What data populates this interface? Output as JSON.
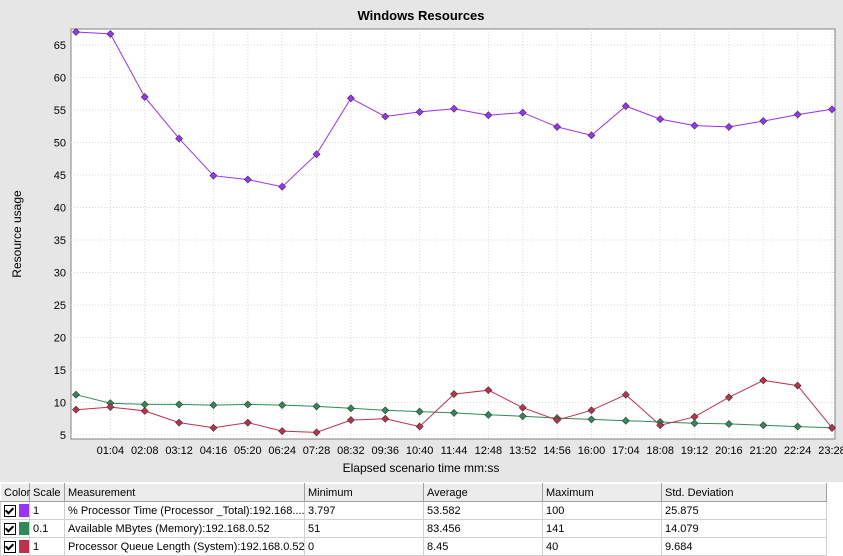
{
  "chart_data": {
    "type": "line",
    "title": "Windows Resources",
    "xlabel": "Elapsed scenario time mm:ss",
    "ylabel": "Resource usage",
    "ylim": [
      5,
      67
    ],
    "yticks": [
      5,
      10,
      15,
      20,
      25,
      30,
      35,
      40,
      45,
      50,
      55,
      60,
      65
    ],
    "xticks": [
      "01:04",
      "02:08",
      "03:12",
      "04:16",
      "05:20",
      "06:24",
      "07:28",
      "08:32",
      "09:36",
      "10:40",
      "11:44",
      "12:48",
      "13:52",
      "14:56",
      "16:00",
      "17:04",
      "18:08",
      "19:12",
      "20:16",
      "21:20",
      "22:24",
      "23:28"
    ],
    "grid": true,
    "series": [
      {
        "name": "% Processor Time (Processor _Total):192.168....",
        "color": "#9b30ff",
        "values": [
          67.0,
          66.7,
          57.0,
          50.6,
          44.9,
          44.3,
          43.2,
          48.2,
          56.8,
          54.0,
          54.7,
          55.2,
          54.2,
          54.6,
          52.4,
          51.1,
          55.6,
          53.6,
          52.6,
          52.4,
          53.3,
          54.3,
          55.1
        ]
      },
      {
        "name": "Available MBytes (Memory):192.168.0.52",
        "color": "#2e8b57",
        "values": [
          11.2,
          9.9,
          9.7,
          9.7,
          9.6,
          9.7,
          9.6,
          9.4,
          9.1,
          8.8,
          8.6,
          8.4,
          8.1,
          7.9,
          7.6,
          7.4,
          7.2,
          7.0,
          6.8,
          6.7,
          6.5,
          6.3,
          6.1
        ]
      },
      {
        "name": "Processor Queue Length (System):192.168.0.52",
        "color": "#c0304a",
        "values": [
          8.9,
          9.3,
          8.7,
          6.9,
          6.1,
          6.9,
          5.6,
          5.4,
          7.3,
          7.5,
          6.3,
          11.3,
          11.9,
          9.2,
          7.3,
          8.8,
          11.2,
          6.5,
          7.8,
          10.8,
          13.4,
          12.6,
          6.1
        ]
      }
    ]
  },
  "legend": {
    "headers": [
      "Color",
      "Scale",
      "Measurement",
      "Minimum",
      "Average",
      "Maximum",
      "Std. Deviation"
    ],
    "rows": [
      {
        "color": "#9b30ff",
        "scale": "1",
        "measurement": "% Processor Time (Processor _Total):192.168....",
        "minimum": "3.797",
        "average": "53.582",
        "maximum": "100",
        "std": "25.875"
      },
      {
        "color": "#2e8b57",
        "scale": "0.1",
        "measurement": "Available MBytes (Memory):192.168.0.52",
        "minimum": "51",
        "average": "83.456",
        "maximum": "141",
        "std": "14.079"
      },
      {
        "color": "#c0304a",
        "scale": "1",
        "measurement": "Processor Queue Length (System):192.168.0.52",
        "minimum": "0",
        "average": "8.45",
        "maximum": "40",
        "std": "9.684"
      }
    ]
  }
}
